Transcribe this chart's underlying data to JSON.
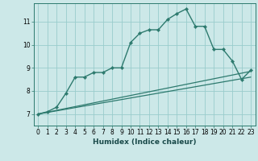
{
  "xlabel": "Humidex (Indice chaleur)",
  "ylabel": "",
  "background_color": "#cce8e8",
  "grid_color": "#99cccc",
  "line_color": "#2d7a6e",
  "xlim": [
    -0.5,
    23.5
  ],
  "ylim": [
    6.5,
    11.8
  ],
  "xticks": [
    0,
    1,
    2,
    3,
    4,
    5,
    6,
    7,
    8,
    9,
    10,
    11,
    12,
    13,
    14,
    15,
    16,
    17,
    18,
    19,
    20,
    21,
    22,
    23
  ],
  "yticks": [
    7,
    8,
    9,
    10,
    11
  ],
  "series": [
    {
      "x": [
        0,
        1,
        2,
        3,
        4,
        5,
        6,
        7,
        8,
        9,
        10,
        11,
        12,
        13,
        14,
        15,
        16,
        17,
        18,
        19,
        20,
        21,
        22,
        23
      ],
      "y": [
        7.0,
        7.1,
        7.3,
        7.9,
        8.6,
        8.6,
        8.8,
        8.8,
        9.0,
        9.0,
        10.1,
        10.5,
        10.65,
        10.65,
        11.1,
        11.35,
        11.55,
        10.8,
        10.8,
        9.8,
        9.8,
        9.3,
        8.5,
        8.9
      ],
      "marker": "D",
      "markersize": 2.2,
      "linewidth": 1.0
    },
    {
      "x": [
        0,
        23
      ],
      "y": [
        7.0,
        8.85
      ],
      "marker": null,
      "markersize": 0,
      "linewidth": 0.9
    },
    {
      "x": [
        0,
        23
      ],
      "y": [
        7.0,
        8.6
      ],
      "marker": null,
      "markersize": 0,
      "linewidth": 0.9
    }
  ]
}
